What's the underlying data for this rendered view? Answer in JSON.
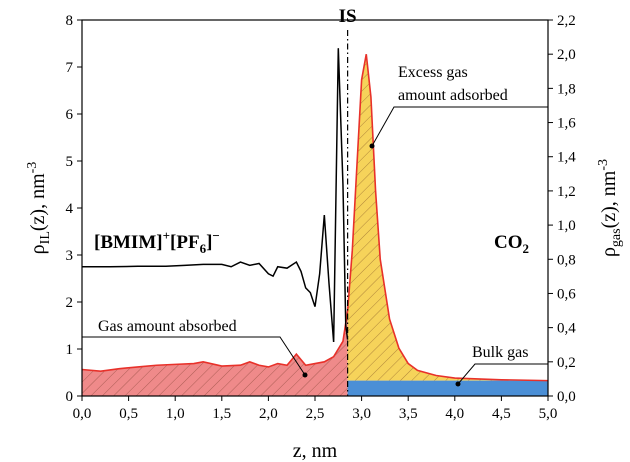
{
  "chart_data": {
    "type": "area",
    "xlabel": "z, nm",
    "ylabel_left": {
      "base": "ρ",
      "sub": "IL",
      "tail": "(z), nm",
      "sup": "-3"
    },
    "ylabel_right": {
      "base": "ρ",
      "sub": "gas",
      "tail": "(z), nm",
      "sup": "-3"
    },
    "xlim": [
      0,
      5
    ],
    "ylim_left": [
      0,
      8
    ],
    "ylim_right": [
      0,
      2.2
    ],
    "x_ticks": [
      "0,0",
      "0,5",
      "1,0",
      "1,5",
      "2,0",
      "2,5",
      "3,0",
      "3,5",
      "4,0",
      "4,5",
      "5,0"
    ],
    "y_left_ticks": [
      "0",
      "1",
      "2",
      "3",
      "4",
      "5",
      "6",
      "7",
      "8"
    ],
    "y_right_ticks": [
      "0,0",
      "0,2",
      "0,4",
      "0,6",
      "0,8",
      "1,0",
      "1,2",
      "1,4",
      "1,6",
      "1,8",
      "2,0",
      "2,2"
    ],
    "interface_z": 2.85,
    "interface_label": "IS",
    "bulk_gas_level": 0.09,
    "bulk_gas_right_density": 0.09,
    "labels": {
      "il": {
        "base": "[BMIM]",
        "sup1": "+",
        "mid": "[PF",
        "sub": "6",
        "close": "]",
        "sup2": "−"
      },
      "gas": {
        "base": "CO",
        "sub": "2"
      }
    },
    "annotations": {
      "excess_line1": "Excess gas",
      "excess_line2": "amount adsorbed",
      "absorbed": "Gas amount absorbed",
      "bulk": "Bulk gas"
    },
    "colors": {
      "il_line": "#000000",
      "gas_line": "#e8312a",
      "absorbed_fill": "#ef8a8a",
      "excess_fill": "#f6d35a",
      "bulk_fill": "#4b8fd6"
    },
    "series": [
      {
        "name": "ρIL(z)",
        "axis": "left",
        "x": [
          0.0,
          0.3,
          0.6,
          0.9,
          1.1,
          1.3,
          1.5,
          1.6,
          1.7,
          1.8,
          1.9,
          2.0,
          2.05,
          2.1,
          2.2,
          2.3,
          2.35,
          2.4,
          2.45,
          2.5,
          2.55,
          2.6,
          2.65,
          2.7,
          2.75,
          2.8,
          2.83,
          2.85
        ],
        "y": [
          2.75,
          2.75,
          2.76,
          2.76,
          2.78,
          2.8,
          2.8,
          2.75,
          2.85,
          2.78,
          2.82,
          2.6,
          2.55,
          2.75,
          2.72,
          2.85,
          2.65,
          2.3,
          2.2,
          1.9,
          2.6,
          3.85,
          2.4,
          1.15,
          7.4,
          4.5,
          1.5,
          1.2
        ]
      },
      {
        "name": "ρgas(z)",
        "axis": "right",
        "x": [
          0.0,
          0.2,
          0.4,
          0.6,
          0.8,
          1.0,
          1.2,
          1.3,
          1.5,
          1.7,
          1.8,
          1.9,
          2.0,
          2.1,
          2.2,
          2.3,
          2.4,
          2.5,
          2.6,
          2.7,
          2.8,
          2.85,
          2.9,
          2.95,
          3.0,
          3.05,
          3.1,
          3.15,
          3.2,
          3.3,
          3.4,
          3.5,
          3.6,
          3.8,
          4.0,
          4.5,
          5.0
        ],
        "y": [
          0.155,
          0.145,
          0.16,
          0.17,
          0.18,
          0.185,
          0.19,
          0.2,
          0.175,
          0.18,
          0.2,
          0.18,
          0.17,
          0.19,
          0.18,
          0.245,
          0.18,
          0.19,
          0.2,
          0.23,
          0.32,
          0.5,
          0.85,
          1.35,
          1.85,
          2.0,
          1.75,
          1.2,
          0.8,
          0.45,
          0.28,
          0.19,
          0.15,
          0.12,
          0.105,
          0.095,
          0.09
        ]
      }
    ]
  }
}
